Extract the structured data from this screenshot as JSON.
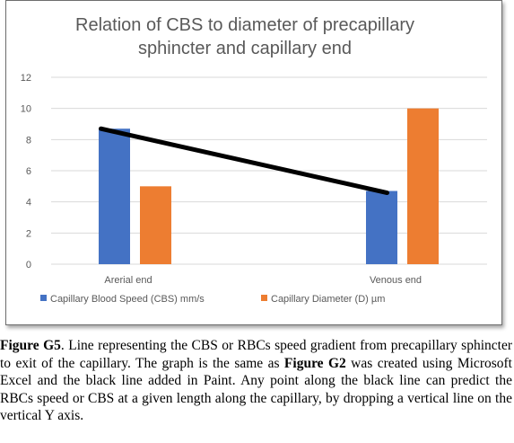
{
  "chart_data": {
    "type": "bar",
    "title": [
      "Relation of CBS to diameter of precapillary",
      "sphincter and capillary end"
    ],
    "categories": [
      "Arerial end",
      "Venous end"
    ],
    "series": [
      {
        "name": "Capillary Blood Speed (CBS) mm/s",
        "values": [
          8.7,
          4.7
        ],
        "color": "#4472C4"
      },
      {
        "name": "Capillary Diameter (D) µm",
        "values": [
          5,
          10
        ],
        "color": "#ED7D31"
      }
    ],
    "y_ticks": [
      0,
      2,
      4,
      6,
      8,
      10,
      12
    ],
    "ylim": [
      0,
      12
    ],
    "grid": true,
    "legend_position": "bottom",
    "annotation_line": {
      "from": [
        1,
        8.7
      ],
      "to": [
        2,
        4.7
      ],
      "color": "#000000"
    }
  },
  "caption": {
    "fig_label": "Figure G5",
    "text_1": ". Line representing the CBS or RBCs speed gradient from precapillary sphincter to exit of the capillary. The graph is the same as ",
    "fig_ref": "Figure G2",
    "text_2": " was created using Microsoft Excel and the black line added in Paint. Any point along the black line can predict the RBCs speed or CBS at a given length along the capillary, by dropping a vertical line on the vertical Y axis."
  }
}
